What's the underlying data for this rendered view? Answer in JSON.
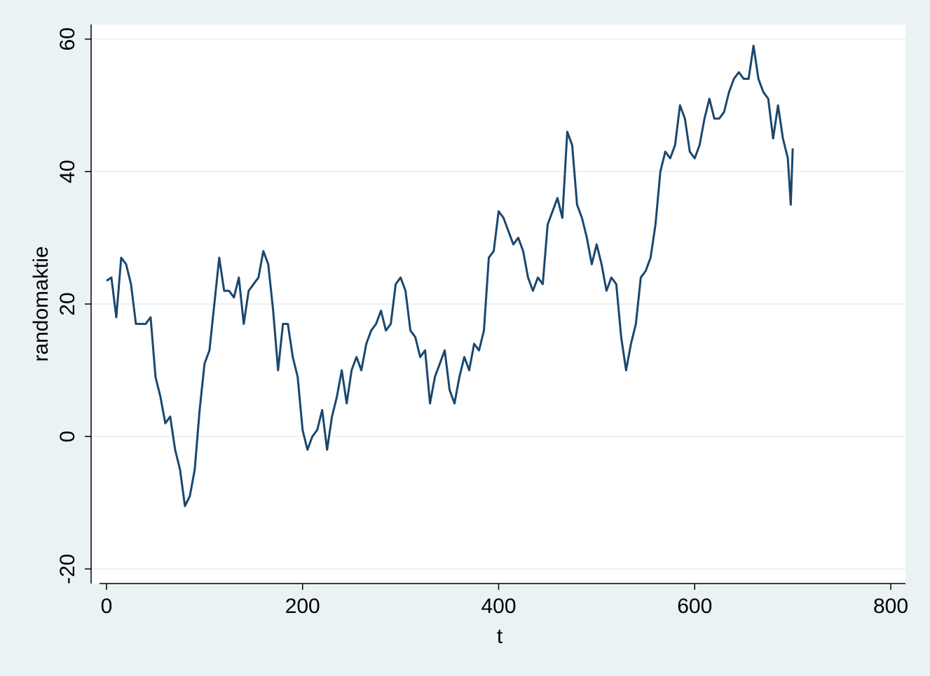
{
  "chart_data": {
    "type": "line",
    "x_label": "t",
    "y_label": "randomaktie",
    "x": [
      0,
      5,
      10,
      15,
      20,
      25,
      30,
      35,
      40,
      45,
      50,
      55,
      60,
      65,
      70,
      75,
      80,
      85,
      90,
      95,
      100,
      105,
      110,
      115,
      120,
      125,
      130,
      135,
      140,
      145,
      150,
      155,
      160,
      165,
      170,
      175,
      180,
      185,
      190,
      195,
      200,
      205,
      210,
      215,
      220,
      225,
      230,
      235,
      240,
      245,
      250,
      255,
      260,
      265,
      270,
      275,
      280,
      285,
      290,
      295,
      300,
      305,
      310,
      315,
      320,
      325,
      330,
      335,
      340,
      345,
      350,
      355,
      360,
      365,
      370,
      375,
      380,
      385,
      390,
      395,
      400,
      405,
      410,
      415,
      420,
      425,
      430,
      435,
      440,
      445,
      450,
      455,
      460,
      465,
      470,
      475,
      480,
      485,
      490,
      495,
      500,
      505,
      510,
      515,
      520,
      525,
      530,
      535,
      540,
      545,
      550,
      555,
      560,
      565,
      570,
      575,
      580,
      585,
      590,
      595,
      600,
      605,
      610,
      615,
      620,
      625,
      630,
      635,
      640,
      645,
      650,
      655,
      660,
      665,
      670,
      675,
      680,
      685,
      690,
      695,
      698,
      700
    ],
    "series": [
      {
        "name": "randomaktie",
        "color": "#1a476f",
        "values": [
          23.5,
          24,
          18,
          27,
          26,
          23,
          17,
          17,
          17,
          18,
          9,
          6,
          2,
          3,
          -2,
          -5,
          -10.5,
          -9,
          -5,
          4,
          11,
          13,
          20,
          27,
          22,
          22,
          21,
          24,
          17,
          22,
          23,
          24,
          28,
          26,
          19,
          10,
          17,
          17,
          12,
          9,
          1,
          -2,
          0,
          1,
          4,
          -2,
          3,
          6,
          10,
          5,
          10,
          12,
          10,
          14,
          16,
          17,
          19,
          16,
          17,
          23,
          24,
          22,
          16,
          15,
          12,
          13,
          5,
          9,
          11,
          13,
          7,
          5,
          9,
          12,
          10,
          14,
          13,
          16,
          27,
          28,
          34,
          33,
          31,
          29,
          30,
          28,
          24,
          22,
          24,
          23,
          32,
          34,
          36,
          33,
          46,
          44,
          35,
          33,
          30,
          26,
          29,
          26,
          22,
          24,
          23,
          15,
          10,
          14,
          17,
          24,
          25,
          27,
          32,
          40,
          43,
          42,
          44,
          50,
          48,
          43,
          42,
          44,
          48,
          51,
          48,
          48,
          49,
          52,
          54,
          55,
          54,
          54,
          59,
          54,
          52,
          51,
          45,
          50,
          45,
          42,
          35,
          43.5
        ]
      }
    ],
    "xlim": [
      -15.7,
      815
    ],
    "ylim": [
      -22.2,
      62.2
    ],
    "xticks": [
      0,
      200,
      400,
      600,
      800
    ],
    "yticks": [
      -20,
      0,
      20,
      40,
      60
    ],
    "grid": true
  }
}
